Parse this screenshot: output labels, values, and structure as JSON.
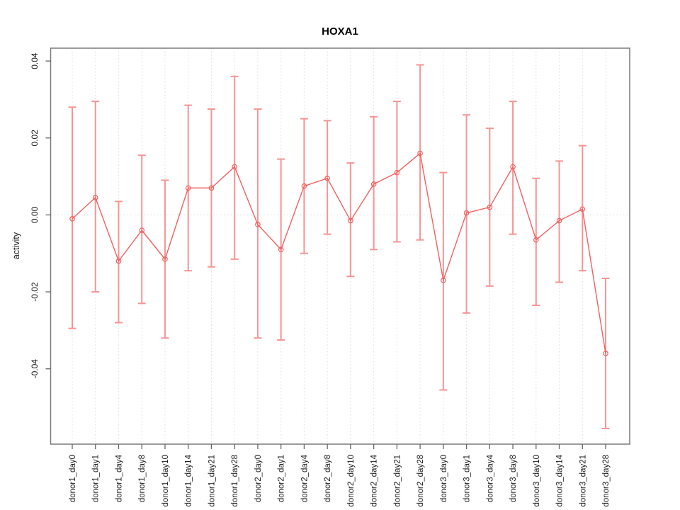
{
  "chart_data": {
    "type": "line",
    "title": "HOXA1",
    "xlabel": "",
    "ylabel": "activity",
    "categories": [
      "donor1_day0",
      "donor1_day1",
      "donor1_day4",
      "donor1_day8",
      "donor1_day10",
      "donor1_day14",
      "donor1_day21",
      "donor1_day28",
      "donor2_day0",
      "donor2_day1",
      "donor2_day4",
      "donor2_day8",
      "donor2_day10",
      "donor2_day14",
      "donor2_day21",
      "donor2_day28",
      "donor3_day0",
      "donor3_day1",
      "donor3_day4",
      "donor3_day8",
      "donor3_day10",
      "donor3_day14",
      "donor3_day21",
      "donor3_day28"
    ],
    "series": [
      {
        "name": "activity",
        "values": [
          -0.001,
          0.0045,
          -0.012,
          -0.004,
          -0.0115,
          0.007,
          0.007,
          0.0125,
          -0.0025,
          -0.009,
          0.0075,
          0.0095,
          -0.0015,
          0.008,
          0.011,
          0.016,
          -0.017,
          0.0005,
          0.002,
          0.0125,
          -0.0065,
          -0.0015,
          0.0015,
          -0.036
        ],
        "error_high": [
          0.028,
          0.0295,
          0.0035,
          0.0155,
          0.009,
          0.0285,
          0.0275,
          0.036,
          0.0275,
          0.0145,
          0.025,
          0.0245,
          0.0135,
          0.0255,
          0.0295,
          0.039,
          0.011,
          0.026,
          0.0225,
          0.0295,
          0.0095,
          0.014,
          0.018,
          -0.0165
        ],
        "error_low": [
          -0.0295,
          -0.02,
          -0.028,
          -0.023,
          -0.032,
          -0.0145,
          -0.0135,
          -0.0115,
          -0.032,
          -0.0325,
          -0.01,
          -0.005,
          -0.016,
          -0.009,
          -0.007,
          -0.0065,
          -0.0455,
          -0.0255,
          -0.0185,
          -0.005,
          -0.0235,
          -0.0175,
          -0.0145,
          -0.0555
        ]
      }
    ],
    "ytick_labels": [
      "0.04",
      "0.02",
      "0.00",
      "-0.02",
      "-0.04"
    ],
    "ytick_values": [
      0.04,
      0.02,
      0.0,
      -0.02,
      -0.04
    ],
    "ylim": [
      -0.0596,
      0.0433
    ],
    "grid": true,
    "zero_line": true,
    "legend_position": "none",
    "colors": {
      "series": "#f25f5f",
      "error_bar": "#f79494",
      "grid": "#dcdcdc",
      "zero_line": "#d8d8d8",
      "frame": "#7a7a7a",
      "tick": "#666666",
      "text": "#1a1a1a",
      "background": "#ffffff"
    }
  }
}
